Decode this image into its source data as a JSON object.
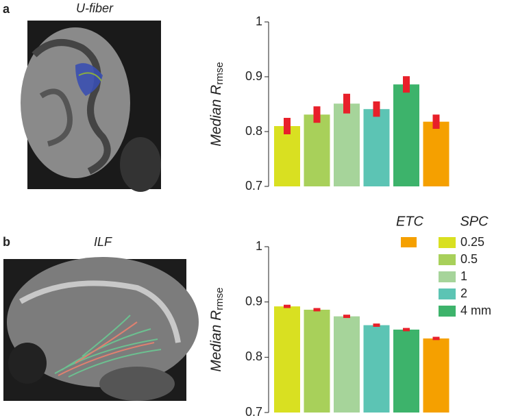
{
  "panels": [
    {
      "label": "a",
      "image_title": "U-fiber"
    },
    {
      "label": "b",
      "image_title": "ILF"
    }
  ],
  "chart_data": [
    {
      "type": "bar",
      "ylabel": "Median R",
      "ylabel_subscript": "rmse",
      "ylim": [
        0.7,
        1
      ],
      "yticks": [
        0.7,
        0.8,
        0.9,
        1
      ],
      "series": [
        {
          "name": "0.25",
          "color": "#d9e021",
          "values": [
            0.81
          ],
          "errors": [
            0.015
          ]
        },
        {
          "name": "0.5",
          "color": "#a8d05a",
          "values": [
            0.831
          ],
          "errors": [
            0.015
          ]
        },
        {
          "name": "1",
          "color": "#a6d49a",
          "values": [
            0.851
          ],
          "errors": [
            0.018
          ]
        },
        {
          "name": "2",
          "color": "#5cc4b4",
          "values": [
            0.841
          ],
          "errors": [
            0.014
          ]
        },
        {
          "name": "4 mm",
          "color": "#3db36b",
          "values": [
            0.886
          ],
          "errors": [
            0.015
          ]
        },
        {
          "color": "#f5a000",
          "values": [
            0.818
          ],
          "errors": [
            0.013
          ]
        }
      ]
    },
    {
      "type": "bar",
      "ylabel": "Median R",
      "ylabel_subscript": "rmse",
      "ylim": [
        0.7,
        1
      ],
      "yticks": [
        0.7,
        0.8,
        0.9,
        1
      ],
      "legend": {
        "titles": [
          "ETC",
          "SPC"
        ]
      },
      "series": [
        {
          "name": "0.25",
          "color": "#d9e021",
          "values": [
            0.892
          ],
          "errors": [
            0.003
          ]
        },
        {
          "name": "0.5",
          "color": "#a8d05a",
          "values": [
            0.886
          ],
          "errors": [
            0.003
          ]
        },
        {
          "name": "1",
          "color": "#a6d49a",
          "values": [
            0.874
          ],
          "errors": [
            0.003
          ]
        },
        {
          "name": "2",
          "color": "#5cc4b4",
          "values": [
            0.858
          ],
          "errors": [
            0.003
          ]
        },
        {
          "name": "4 mm",
          "color": "#3db36b",
          "values": [
            0.85
          ],
          "errors": [
            0.003
          ]
        },
        {
          "color": "#f5a000",
          "values": [
            0.834
          ],
          "errors": [
            0.003
          ]
        }
      ]
    }
  ]
}
